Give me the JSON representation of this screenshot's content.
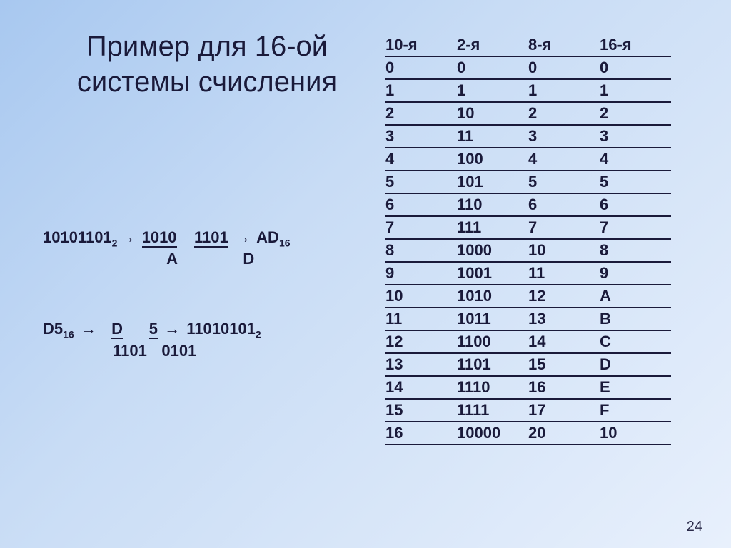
{
  "title_line1": "Пример для 16-ой",
  "title_line2": "системы счисления",
  "ex1": {
    "src": "10101101",
    "src_sub": "2",
    "g1": "1010",
    "g2": "1101",
    "res": "AD",
    "res_sub": "16",
    "lab1": "A",
    "lab2": "D"
  },
  "ex2": {
    "src": "D5",
    "src_sub": "16",
    "g1": "D",
    "g2": "5",
    "res": "11010101",
    "res_sub": "2",
    "lab1": "1101",
    "lab2": "0101"
  },
  "table": {
    "headers": [
      "10-я",
      "2-я",
      "8-я",
      "16-я"
    ],
    "rows": [
      [
        "0",
        "0",
        "0",
        "0"
      ],
      [
        "1",
        "1",
        "1",
        "1"
      ],
      [
        "2",
        "10",
        "2",
        "2"
      ],
      [
        "3",
        "11",
        "3",
        "3"
      ],
      [
        "4",
        "100",
        "4",
        "4"
      ],
      [
        "5",
        "101",
        "5",
        "5"
      ],
      [
        "6",
        "110",
        "6",
        "6"
      ],
      [
        "7",
        "111",
        "7",
        "7"
      ],
      [
        "8",
        "1000",
        "10",
        "8"
      ],
      [
        "9",
        "1001",
        "11",
        "9"
      ],
      [
        "10",
        "1010",
        "12",
        "A"
      ],
      [
        "11",
        "1011",
        "13",
        "B"
      ],
      [
        "12",
        "1100",
        "14",
        "C"
      ],
      [
        "13",
        "1101",
        "15",
        "D"
      ],
      [
        "14",
        "1110",
        "16",
        "E"
      ],
      [
        "15",
        "1111",
        "17",
        "F"
      ],
      [
        "16",
        "10000",
        "20",
        "10"
      ]
    ]
  },
  "page_number": "24",
  "colors": {
    "text": "#1a1a3a",
    "bg_top": "#a8c8f0",
    "bg_mid": "#c8dcf5",
    "bg_bot": "#e8f0fc"
  }
}
